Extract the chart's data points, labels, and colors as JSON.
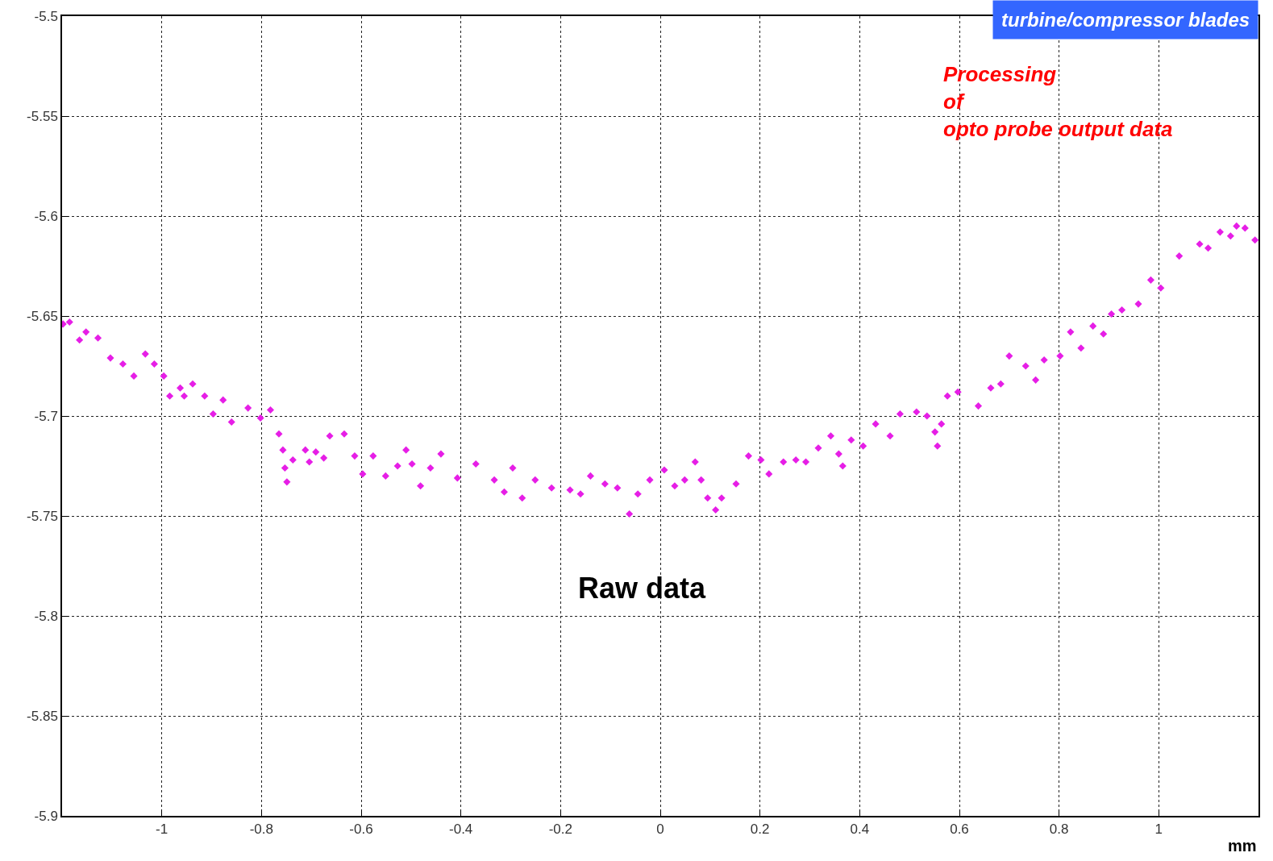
{
  "chart_data": {
    "type": "scatter",
    "xlabel": "mm",
    "annotations": [
      "turbine/compressor blades",
      "Processing\nof\nopto probe output data",
      "Raw data"
    ],
    "xlim": [
      -1.2,
      1.2
    ],
    "ylim": [
      -5.9,
      -5.5
    ],
    "xticks": [
      -1,
      -0.8,
      -0.6,
      -0.4,
      -0.2,
      0,
      0.2,
      0.4,
      0.6,
      0.8,
      1
    ],
    "yticks": [
      -5.9,
      -5.85,
      -5.8,
      -5.75,
      -5.7,
      -5.65,
      -5.6,
      -5.55,
      -5.5
    ],
    "grid": true,
    "marker": "diamond",
    "series": [
      {
        "color": "#e61ee6",
        "x": [
          -1.198,
          -1.185,
          -1.165,
          -1.152,
          -1.128,
          -1.103,
          -1.078,
          -1.056,
          -1.033,
          -1.015,
          -0.996,
          -0.984,
          -0.963,
          -0.955,
          -0.938,
          -0.914,
          -0.897,
          -0.877,
          -0.86,
          -0.827,
          -0.802,
          -0.782,
          -0.765,
          -0.757,
          -0.753,
          -0.749,
          -0.737,
          -0.712,
          -0.704,
          -0.691,
          -0.675,
          -0.663,
          -0.634,
          -0.613,
          -0.597,
          -0.576,
          -0.551,
          -0.527,
          -0.51,
          -0.498,
          -0.481,
          -0.461,
          -0.44,
          -0.407,
          -0.37,
          -0.333,
          -0.313,
          -0.296,
          -0.277,
          -0.251,
          -0.218,
          -0.181,
          -0.16,
          -0.14,
          -0.111,
          -0.086,
          -0.062,
          -0.045,
          -0.021,
          0.008,
          0.029,
          0.049,
          0.07,
          0.082,
          0.095,
          0.111,
          0.123,
          0.152,
          0.177,
          0.202,
          0.218,
          0.247,
          0.272,
          0.292,
          0.317,
          0.342,
          0.358,
          0.366,
          0.383,
          0.407,
          0.432,
          0.461,
          0.481,
          0.514,
          0.535,
          0.551,
          0.556,
          0.564,
          0.576,
          0.597,
          0.638,
          0.663,
          0.683,
          0.7,
          0.733,
          0.753,
          0.77,
          0.802,
          0.823,
          0.844,
          0.868,
          0.889,
          0.905,
          0.926,
          0.959,
          0.984,
          1.004,
          1.041,
          1.082,
          1.099,
          1.123,
          1.144,
          1.156,
          1.173,
          1.193
        ],
        "values": [
          -5.654,
          -5.653,
          -5.662,
          -5.658,
          -5.661,
          -5.671,
          -5.674,
          -5.68,
          -5.669,
          -5.674,
          -5.68,
          -5.69,
          -5.686,
          -5.69,
          -5.684,
          -5.69,
          -5.699,
          -5.692,
          -5.703,
          -5.696,
          -5.701,
          -5.697,
          -5.709,
          -5.717,
          -5.726,
          -5.733,
          -5.722,
          -5.717,
          -5.723,
          -5.718,
          -5.721,
          -5.71,
          -5.709,
          -5.72,
          -5.729,
          -5.72,
          -5.73,
          -5.725,
          -5.717,
          -5.724,
          -5.735,
          -5.726,
          -5.719,
          -5.731,
          -5.724,
          -5.732,
          -5.738,
          -5.726,
          -5.741,
          -5.732,
          -5.736,
          -5.737,
          -5.739,
          -5.73,
          -5.734,
          -5.736,
          -5.749,
          -5.739,
          -5.732,
          -5.727,
          -5.735,
          -5.732,
          -5.723,
          -5.732,
          -5.741,
          -5.747,
          -5.741,
          -5.734,
          -5.72,
          -5.722,
          -5.729,
          -5.723,
          -5.722,
          -5.723,
          -5.716,
          -5.71,
          -5.719,
          -5.725,
          -5.712,
          -5.715,
          -5.704,
          -5.71,
          -5.699,
          -5.698,
          -5.7,
          -5.708,
          -5.715,
          -5.704,
          -5.69,
          -5.688,
          -5.695,
          -5.686,
          -5.684,
          -5.67,
          -5.675,
          -5.682,
          -5.672,
          -5.67,
          -5.658,
          -5.666,
          -5.655,
          -5.659,
          -5.649,
          -5.647,
          -5.644,
          -5.632,
          -5.636,
          -5.62,
          -5.614,
          -5.616,
          -5.608,
          -5.61,
          -5.605,
          -5.606,
          -5.612
        ]
      }
    ]
  }
}
